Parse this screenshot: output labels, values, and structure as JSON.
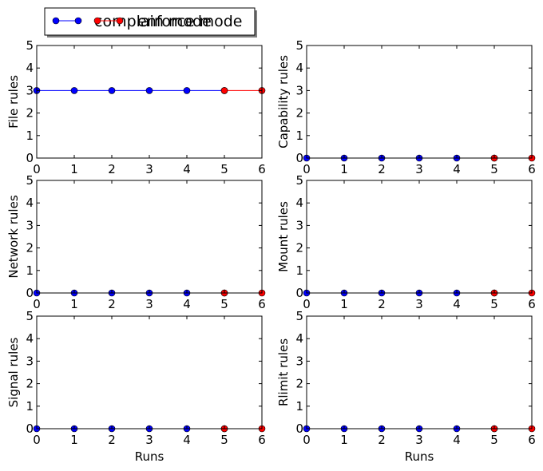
{
  "legend": {
    "placement": "top-left",
    "entries": [
      {
        "label": "complain mode",
        "color": "#0000ff"
      },
      {
        "label": "enforce mode",
        "color": "#ff0000"
      }
    ]
  },
  "chart_data": [
    {
      "type": "line",
      "ylabel": "File rules",
      "xlabel": "Runs",
      "xlim": [
        0,
        6
      ],
      "ylim": [
        0,
        5
      ],
      "xticks": [
        0,
        1,
        2,
        3,
        4,
        5,
        6
      ],
      "yticks": [
        0,
        1,
        2,
        3,
        4,
        5
      ],
      "series": [
        {
          "name": "complain mode",
          "color": "#0000ff",
          "x": [
            0,
            1,
            2,
            3,
            4,
            5
          ],
          "y": [
            3,
            3,
            3,
            3,
            3,
            3
          ]
        },
        {
          "name": "enforce mode",
          "color": "#ff0000",
          "x": [
            5,
            6
          ],
          "y": [
            3,
            3
          ]
        }
      ]
    },
    {
      "type": "line",
      "ylabel": "Capability rules",
      "xlabel": "Runs",
      "xlim": [
        0,
        6
      ],
      "ylim": [
        0,
        5
      ],
      "xticks": [
        0,
        1,
        2,
        3,
        4,
        5,
        6
      ],
      "yticks": [
        0,
        1,
        2,
        3,
        4,
        5
      ],
      "series": [
        {
          "name": "complain mode",
          "color": "#0000ff",
          "x": [
            0,
            1,
            2,
            3,
            4,
            5
          ],
          "y": [
            0,
            0,
            0,
            0,
            0,
            0
          ]
        },
        {
          "name": "enforce mode",
          "color": "#ff0000",
          "x": [
            5,
            6
          ],
          "y": [
            0,
            0
          ]
        }
      ]
    },
    {
      "type": "line",
      "ylabel": "Network rules",
      "xlabel": "Runs",
      "xlim": [
        0,
        6
      ],
      "ylim": [
        0,
        5
      ],
      "xticks": [
        0,
        1,
        2,
        3,
        4,
        5,
        6
      ],
      "yticks": [
        0,
        1,
        2,
        3,
        4,
        5
      ],
      "series": [
        {
          "name": "complain mode",
          "color": "#0000ff",
          "x": [
            0,
            1,
            2,
            3,
            4,
            5
          ],
          "y": [
            0,
            0,
            0,
            0,
            0,
            0
          ]
        },
        {
          "name": "enforce mode",
          "color": "#ff0000",
          "x": [
            5,
            6
          ],
          "y": [
            0,
            0
          ]
        }
      ]
    },
    {
      "type": "line",
      "ylabel": "Mount rules",
      "xlabel": "Runs",
      "xlim": [
        0,
        6
      ],
      "ylim": [
        0,
        5
      ],
      "xticks": [
        0,
        1,
        2,
        3,
        4,
        5,
        6
      ],
      "yticks": [
        0,
        1,
        2,
        3,
        4,
        5
      ],
      "series": [
        {
          "name": "complain mode",
          "color": "#0000ff",
          "x": [
            0,
            1,
            2,
            3,
            4,
            5
          ],
          "y": [
            0,
            0,
            0,
            0,
            0,
            0
          ]
        },
        {
          "name": "enforce mode",
          "color": "#ff0000",
          "x": [
            5,
            6
          ],
          "y": [
            0,
            0
          ]
        }
      ]
    },
    {
      "type": "line",
      "ylabel": "Signal rules",
      "xlabel": "Runs",
      "xlim": [
        0,
        6
      ],
      "ylim": [
        0,
        5
      ],
      "xticks": [
        0,
        1,
        2,
        3,
        4,
        5,
        6
      ],
      "yticks": [
        0,
        1,
        2,
        3,
        4,
        5
      ],
      "series": [
        {
          "name": "complain mode",
          "color": "#0000ff",
          "x": [
            0,
            1,
            2,
            3,
            4,
            5
          ],
          "y": [
            0,
            0,
            0,
            0,
            0,
            0
          ]
        },
        {
          "name": "enforce mode",
          "color": "#ff0000",
          "x": [
            5,
            6
          ],
          "y": [
            0,
            0
          ]
        }
      ]
    },
    {
      "type": "line",
      "ylabel": "Rlimit rules",
      "xlabel": "Runs",
      "xlim": [
        0,
        6
      ],
      "ylim": [
        0,
        5
      ],
      "xticks": [
        0,
        1,
        2,
        3,
        4,
        5,
        6
      ],
      "yticks": [
        0,
        1,
        2,
        3,
        4,
        5
      ],
      "series": [
        {
          "name": "complain mode",
          "color": "#0000ff",
          "x": [
            0,
            1,
            2,
            3,
            4,
            5
          ],
          "y": [
            0,
            0,
            0,
            0,
            0,
            0
          ]
        },
        {
          "name": "enforce mode",
          "color": "#ff0000",
          "x": [
            5,
            6
          ],
          "y": [
            0,
            0
          ]
        }
      ]
    }
  ]
}
